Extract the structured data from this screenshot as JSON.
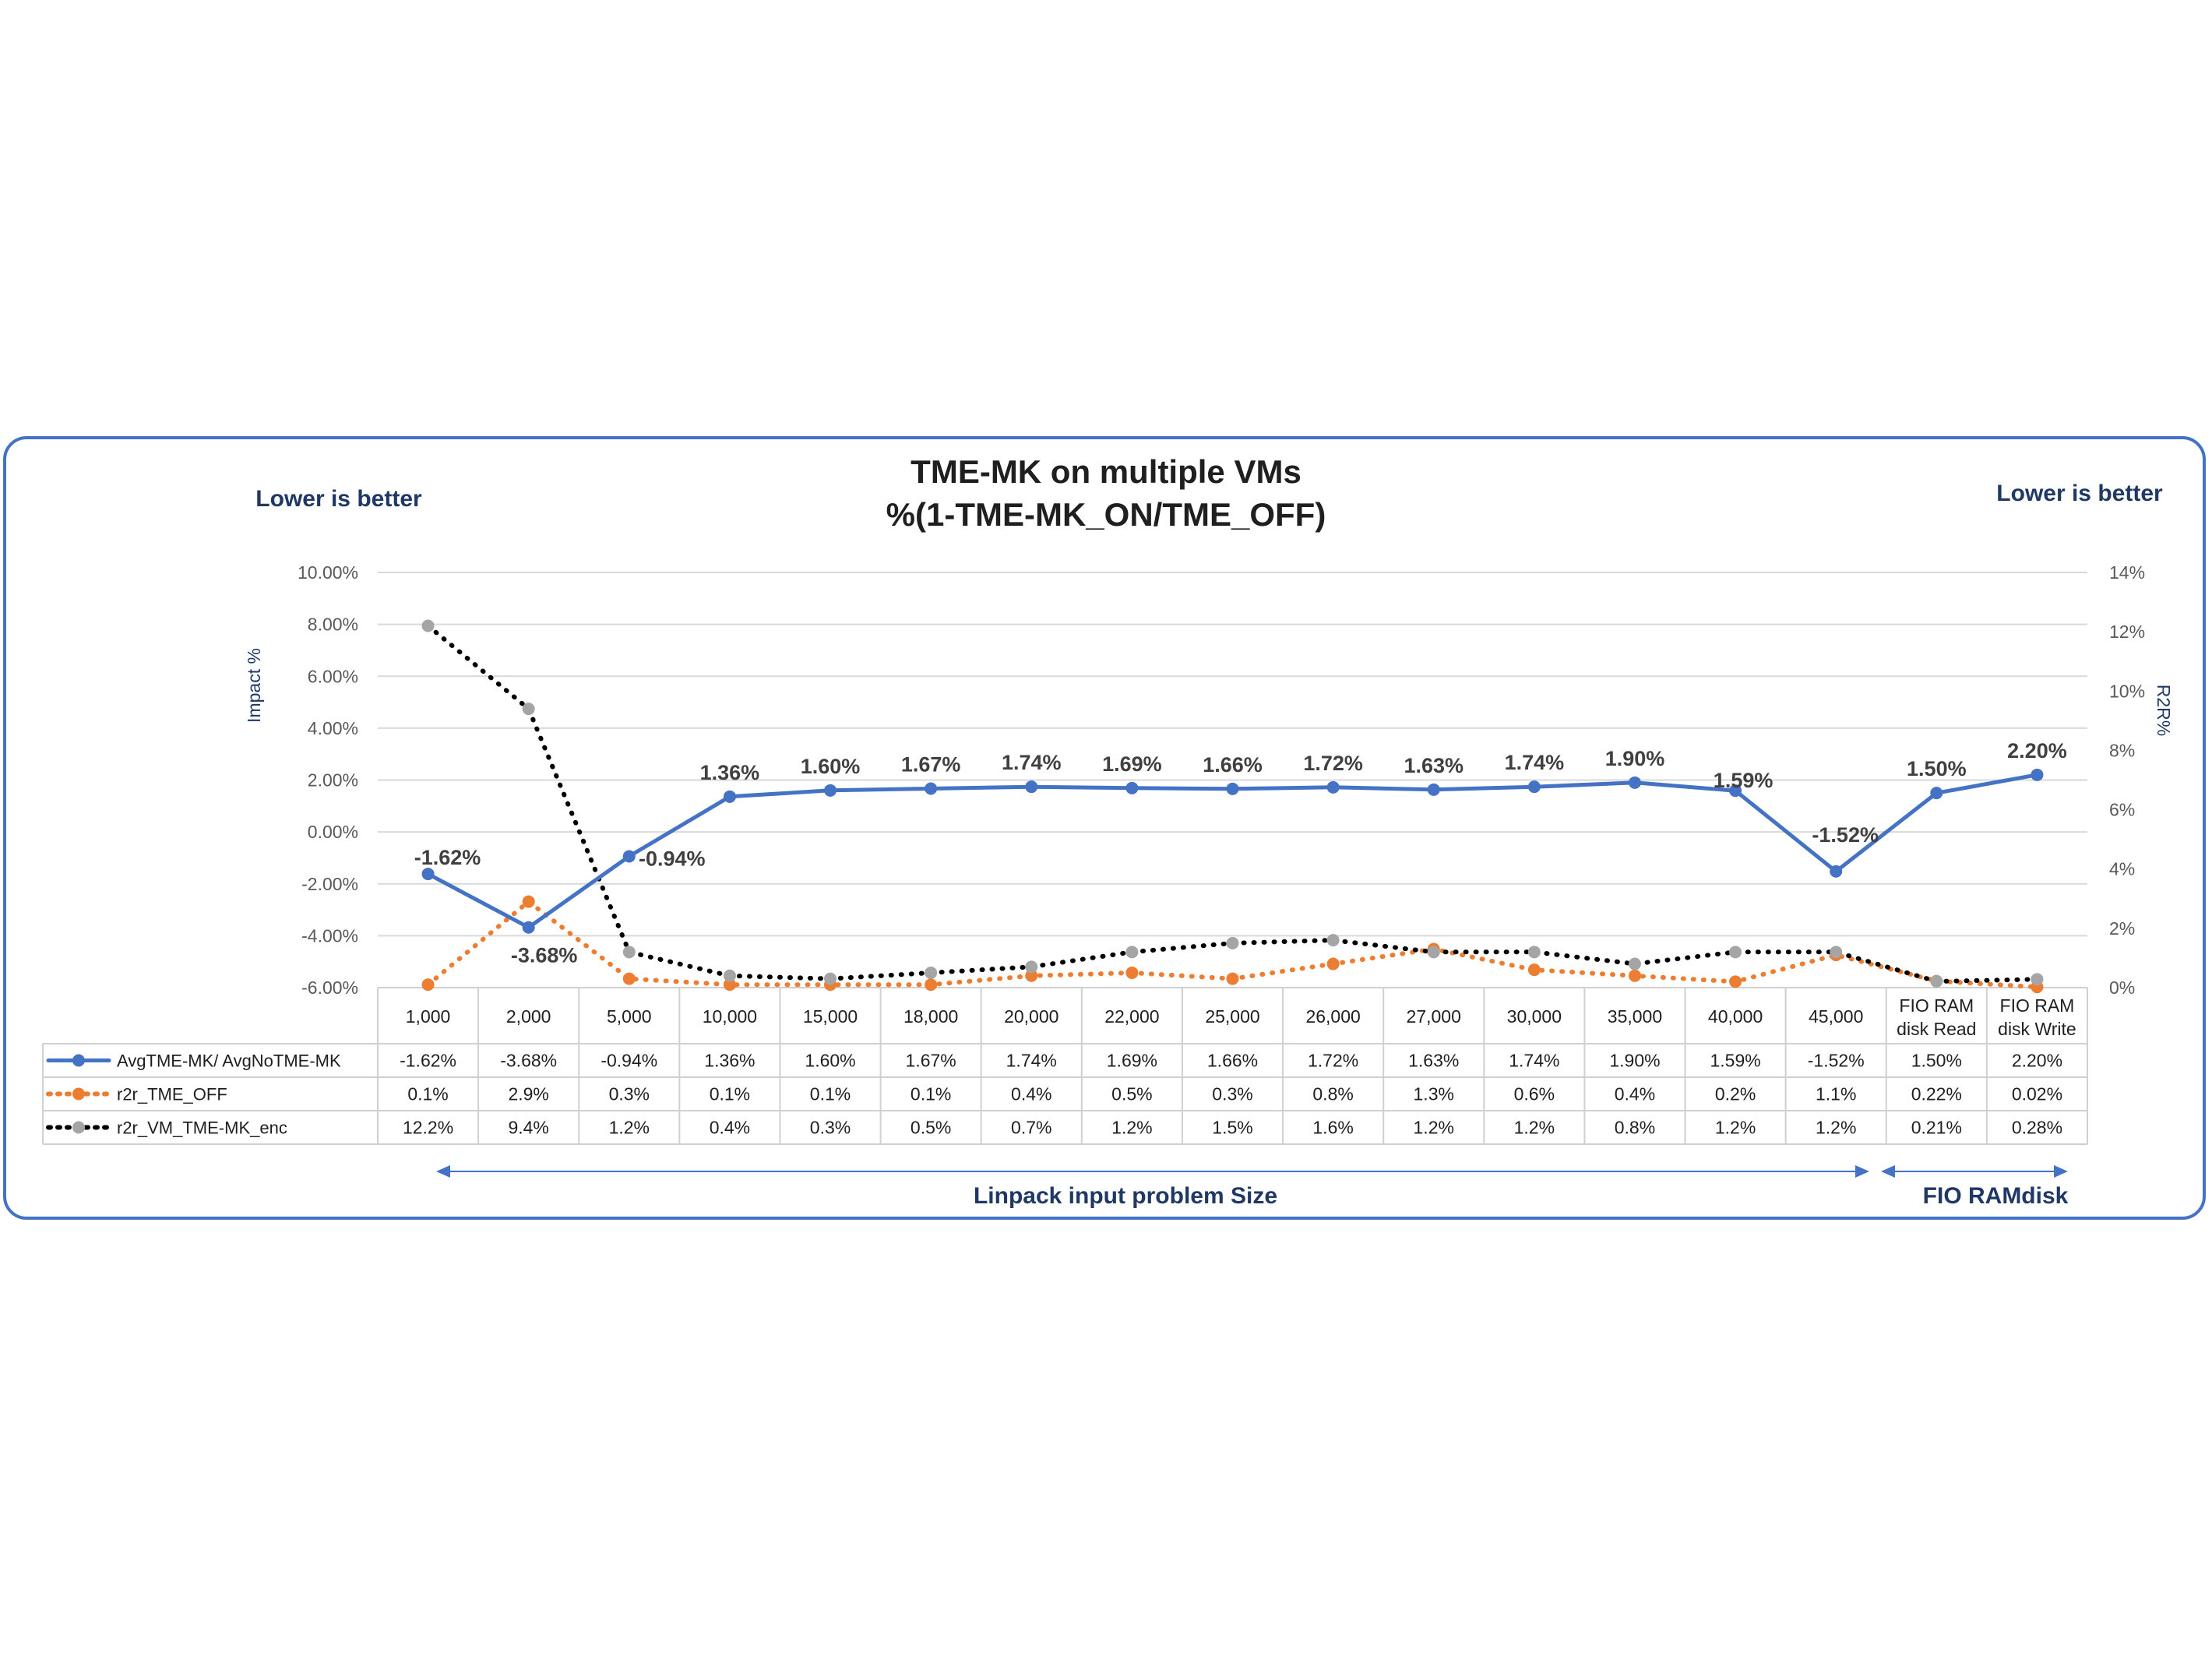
{
  "chart_data": {
    "type": "line",
    "title": "TME-MK on multiple VMs",
    "subtitle": "%(1-TME-MK_ON/TME_OFF)",
    "note_left": "Lower is better",
    "note_right": "Lower is better",
    "ylabel": "Impact %",
    "y2label": "R2R%",
    "ylim": [
      -6,
      10
    ],
    "y2lim": [
      0,
      14
    ],
    "yticks": [
      "10.00%",
      "8.00%",
      "6.00%",
      "4.00%",
      "2.00%",
      "0.00%",
      "-2.00%",
      "-4.00%",
      "-6.00%"
    ],
    "y2ticks": [
      "14%",
      "12%",
      "10%",
      "8%",
      "6%",
      "4%",
      "2%",
      "0%"
    ],
    "grid": true,
    "categories": [
      [
        "1,000"
      ],
      [
        "2,000"
      ],
      [
        "5,000"
      ],
      [
        "10,000"
      ],
      [
        "15,000"
      ],
      [
        "18,000"
      ],
      [
        "20,000"
      ],
      [
        "22,000"
      ],
      [
        "25,000"
      ],
      [
        "26,000"
      ],
      [
        "27,000"
      ],
      [
        "30,000"
      ],
      [
        "35,000"
      ],
      [
        "40,000"
      ],
      [
        "45,000"
      ],
      [
        "FIO RAM",
        "disk Read"
      ],
      [
        "FIO RAM",
        "disk Write"
      ]
    ],
    "series": [
      {
        "name": "AvgTME-MK/ AvgNoTME-MK",
        "axis": "left",
        "color": "#4472c4",
        "style": "solid",
        "values": [
          -1.62,
          -3.68,
          -0.94,
          1.36,
          1.6,
          1.67,
          1.74,
          1.69,
          1.66,
          1.72,
          1.63,
          1.74,
          1.9,
          1.59,
          -1.52,
          1.5,
          2.2
        ],
        "table": [
          "-1.62%",
          "-3.68%",
          "-0.94%",
          "1.36%",
          "1.60%",
          "1.67%",
          "1.74%",
          "1.69%",
          "1.66%",
          "1.72%",
          "1.63%",
          "1.74%",
          "1.90%",
          "1.59%",
          "-1.52%",
          "1.50%",
          "2.20%"
        ],
        "labels": [
          "-1.62%",
          "-3.68%",
          "-0.94%",
          "1.36%",
          "1.60%",
          "1.67%",
          "1.74%",
          "1.69%",
          "1.66%",
          "1.72%",
          "1.63%",
          "1.74%",
          "1.90%",
          "1.59%",
          "-1.52%",
          "1.50%",
          "2.20%"
        ]
      },
      {
        "name": "r2r_TME_OFF",
        "axis": "right",
        "color": "#ed7d31",
        "style": "dotted",
        "values": [
          0.1,
          2.9,
          0.3,
          0.1,
          0.1,
          0.1,
          0.4,
          0.5,
          0.3,
          0.8,
          1.3,
          0.6,
          0.4,
          0.2,
          1.1,
          0.22,
          0.02
        ],
        "table": [
          "0.1%",
          "2.9%",
          "0.3%",
          "0.1%",
          "0.1%",
          "0.1%",
          "0.4%",
          "0.5%",
          "0.3%",
          "0.8%",
          "1.3%",
          "0.6%",
          "0.4%",
          "0.2%",
          "1.1%",
          "0.22%",
          "0.02%"
        ]
      },
      {
        "name": "r2r_VM_TME-MK_enc",
        "axis": "right",
        "color": "#000000",
        "marker_color": "#a5a5a5",
        "style": "dotted",
        "values": [
          12.2,
          9.4,
          1.2,
          0.4,
          0.3,
          0.5,
          0.7,
          1.2,
          1.5,
          1.6,
          1.2,
          1.2,
          0.8,
          1.2,
          1.2,
          0.21,
          0.28
        ],
        "table": [
          "12.2%",
          "9.4%",
          "1.2%",
          "0.4%",
          "0.3%",
          "0.5%",
          "0.7%",
          "1.2%",
          "1.5%",
          "1.6%",
          "1.2%",
          "1.2%",
          "0.8%",
          "1.2%",
          "1.2%",
          "0.21%",
          "0.28%"
        ]
      }
    ],
    "ranges": [
      {
        "label": "Linpack input problem Size",
        "from": 0,
        "to": 14
      },
      {
        "label": "FIO RAMdisk",
        "from": 15,
        "to": 16
      }
    ]
  }
}
